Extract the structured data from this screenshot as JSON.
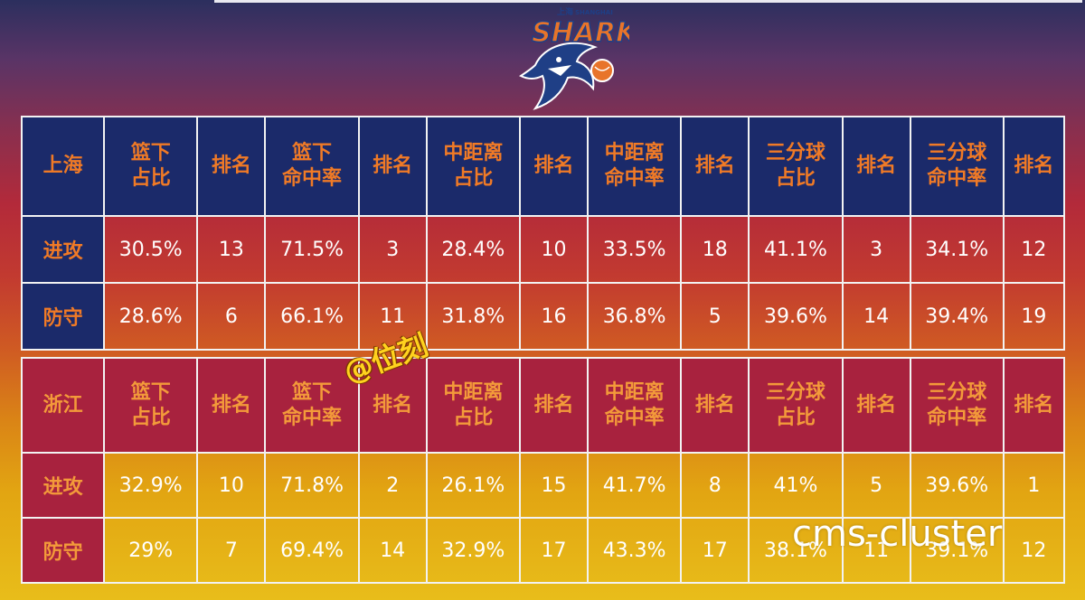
{
  "logo": {
    "name": "SHARKS",
    "subtitle": "SHANGHAI",
    "prefix": "上海"
  },
  "columns": [
    "篮下\n占比",
    "排名",
    "篮下\n命中率",
    "排名",
    "中距离\n占比",
    "排名",
    "中距离\n命中率",
    "排名",
    "三分球\n占比",
    "排名",
    "三分球\n命中率",
    "排名"
  ],
  "tables": [
    {
      "team": "上海",
      "rows": [
        {
          "label": "进攻",
          "values": [
            "30.5%",
            "13",
            "71.5%",
            "3",
            "28.4%",
            "10",
            "33.5%",
            "18",
            "41.1%",
            "3",
            "34.1%",
            "12"
          ]
        },
        {
          "label": "防守",
          "values": [
            "28.6%",
            "6",
            "66.1%",
            "11",
            "31.8%",
            "16",
            "36.8%",
            "5",
            "39.6%",
            "14",
            "39.4%",
            "19"
          ]
        }
      ]
    },
    {
      "team": "浙江",
      "rows": [
        {
          "label": "进攻",
          "values": [
            "32.9%",
            "10",
            "71.8%",
            "2",
            "26.1%",
            "15",
            "41.7%",
            "8",
            "41%",
            "5",
            "39.6%",
            "1"
          ]
        },
        {
          "label": "防守",
          "values": [
            "29%",
            "7",
            "69.4%",
            "14",
            "32.9%",
            "17",
            "43.3%",
            "17",
            "38.1%",
            "11",
            "39.1%",
            "12"
          ]
        }
      ]
    }
  ],
  "watermark": "@位刻",
  "overlay_text": "cms-cluster"
}
